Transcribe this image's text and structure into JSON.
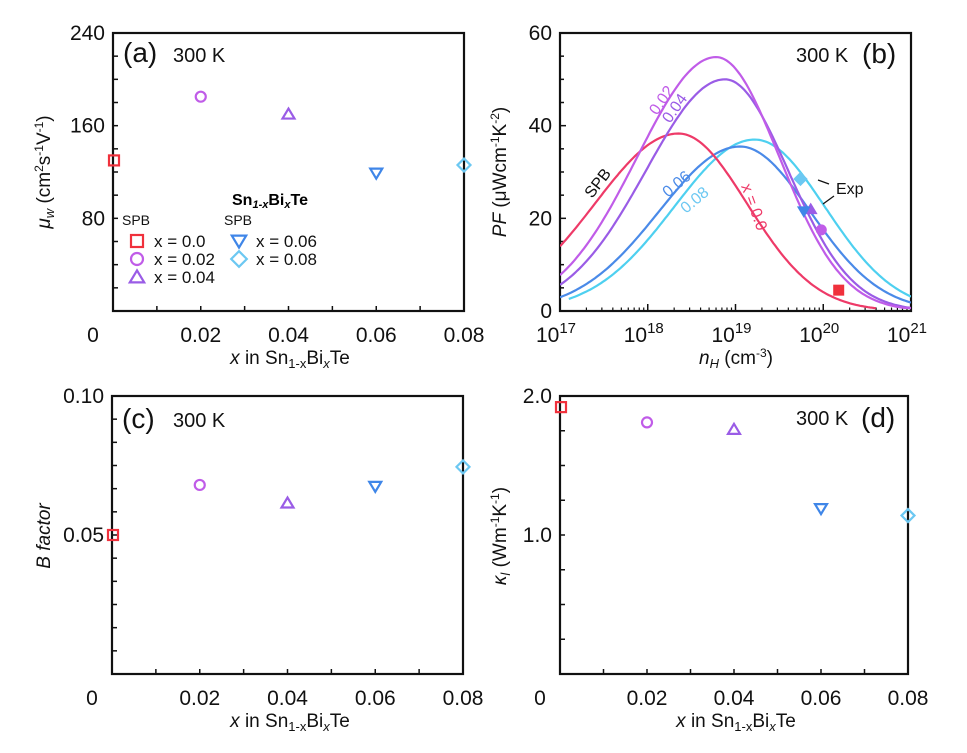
{
  "colors": {
    "x0": "#f0313c",
    "x002": "#c05ce8",
    "x004": "#9a5ce6",
    "x006": "#3f86e8",
    "x008": "#6cc8f2",
    "curve_x0": "#ee3a68",
    "curve_x002": "#c05ce8",
    "curve_x004": "#9a5ce6",
    "curve_x006": "#4a8ae8",
    "curve_x008": "#4ed0f0",
    "axis": "#111111"
  },
  "chart_data": [
    {
      "id": "a",
      "type": "scatter",
      "panel_label": "(a)",
      "annotation": "300 K",
      "xlabel": "x in Sn1-xBixTe",
      "xlabel_parts": {
        "pre": "x",
        "mid": " in Sn",
        "sub1": "1-x",
        "bi": "Bi",
        "sub2": "x",
        "post": "Te"
      },
      "ylabel": "μw (cm2s-1V-1)",
      "ylabel_parts": {
        "sym": "μ",
        "sub": "w",
        "unit_pre": " (cm",
        "sup1": "2",
        "unit_mid": "s",
        "sup2": "-1",
        "unit_mid2": "V",
        "sup3": "-1",
        "unit_post": ")"
      },
      "xlim": [
        0,
        0.08
      ],
      "ylim": [
        0,
        240
      ],
      "xticks": [
        0,
        0.02,
        0.04,
        0.06,
        0.08
      ],
      "xtick_labels": [
        "0",
        "0.02",
        "0.04",
        "0.06",
        "0.08"
      ],
      "yticks": [
        80,
        160,
        240
      ],
      "ytick_labels": [
        "80",
        "160",
        "240"
      ],
      "series": [
        {
          "name": "x = 0.0",
          "marker": "square",
          "x": 0.0,
          "y": 130
        },
        {
          "name": "x = 0.02",
          "marker": "circle",
          "x": 0.02,
          "y": 185
        },
        {
          "name": "x = 0.04",
          "marker": "triangle-up",
          "x": 0.04,
          "y": 170
        },
        {
          "name": "x = 0.06",
          "marker": "triangle-down",
          "x": 0.06,
          "y": 119
        },
        {
          "name": "x = 0.08",
          "marker": "diamond",
          "x": 0.08,
          "y": 126
        }
      ],
      "legend": {
        "title": "Sn1-xBixTe",
        "title_parts": {
          "a": "Sn",
          "sub1": "1-x",
          "b": "Bi",
          "sub2": "x",
          "c": "Te"
        },
        "column_headers": [
          "SPB",
          "SPB"
        ],
        "placement": "lower-left",
        "entries": [
          "x = 0.0",
          "x = 0.02",
          "x = 0.04",
          "x = 0.06",
          "x = 0.08"
        ]
      }
    },
    {
      "id": "b",
      "type": "line",
      "panel_label": "(b)",
      "annotation": "300 K",
      "xlabel": "nH (cm-3)",
      "xlabel_parts": {
        "sym": "n",
        "sub": "H",
        "unit": " (cm",
        "sup": "-3",
        "post": ")"
      },
      "ylabel": "PF (μWcm-1K-2)",
      "ylabel_parts": {
        "sym": "PF",
        "unit": " (μWcm",
        "sup1": "-1",
        "mid": "K",
        "sup2": "-2",
        "post": ")"
      },
      "xscale": "log",
      "xlim": [
        1e+17,
        1e+21
      ],
      "ylim": [
        0,
        60
      ],
      "xticks_exp": [
        17,
        18,
        19,
        20,
        21
      ],
      "xtick_base": "10",
      "yticks": [
        0,
        20,
        40,
        60
      ],
      "ytick_labels": [
        "0",
        "20",
        "40",
        "60"
      ],
      "series": [
        {
          "name": "x = 0.0",
          "label": "x = 0.0",
          "model": "SPB",
          "peak_pf": 38.3,
          "peak_log_n": 18.35,
          "width_left": 0.95,
          "width_right": 0.78,
          "log_n_range": [
            17.0,
            20.6
          ],
          "exp": {
            "marker": "square",
            "n": 1.5e+20,
            "pf": 4.5
          }
        },
        {
          "name": "x = 0.02",
          "label": "0.02",
          "model": "SPB",
          "peak_pf": 54.8,
          "peak_log_n": 18.78,
          "width_left": 0.9,
          "width_right": 0.72,
          "log_n_range": [
            17.0,
            21.0
          ],
          "exp": {
            "marker": "circle",
            "n": 9.5e+19,
            "pf": 17.5
          }
        },
        {
          "name": "x = 0.04",
          "label": "0.04",
          "model": "SPB",
          "peak_pf": 50.0,
          "peak_log_n": 18.88,
          "width_left": 0.9,
          "width_right": 0.72,
          "log_n_range": [
            17.0,
            21.0
          ],
          "exp": {
            "marker": "triangle-up",
            "n": 7.2e+19,
            "pf": 22.0
          }
        },
        {
          "name": "x = 0.06",
          "label": "0.06",
          "model": "SPB",
          "peak_pf": 35.5,
          "peak_log_n": 19.05,
          "width_left": 0.92,
          "width_right": 0.8,
          "log_n_range": [
            17.0,
            21.0
          ],
          "exp": {
            "marker": "triangle-down",
            "n": 6e+19,
            "pf": 21.5
          }
        },
        {
          "name": "x = 0.08",
          "label": "0.08",
          "model": "SPB",
          "peak_pf": 37.0,
          "peak_log_n": 19.22,
          "width_left": 0.92,
          "width_right": 0.8,
          "log_n_range": [
            17.1,
            21.0
          ],
          "exp": {
            "marker": "diamond",
            "n": 5.5e+19,
            "pf": 28.5
          }
        }
      ],
      "annotations": [
        "SPB",
        "Exp"
      ]
    },
    {
      "id": "c",
      "type": "scatter",
      "panel_label": "(c)",
      "annotation": "300 K",
      "xlabel": "x in Sn1-xBixTe",
      "xlabel_parts": {
        "pre": "x",
        "mid": " in Sn",
        "sub1": "1-x",
        "bi": "Bi",
        "sub2": "x",
        "post": "Te"
      },
      "ylabel": "B factor",
      "xlim": [
        0,
        0.08
      ],
      "ylim": [
        0,
        0.1
      ],
      "xticks": [
        0,
        0.02,
        0.04,
        0.06,
        0.08
      ],
      "xtick_labels": [
        "0",
        "0.02",
        "0.04",
        "0.06",
        "0.08"
      ],
      "yticks": [
        0.05,
        0.1
      ],
      "ytick_labels": [
        "0.05",
        "0.10"
      ],
      "series": [
        {
          "name": "x = 0.0",
          "marker": "square",
          "x": 0.0,
          "y": 0.05
        },
        {
          "name": "x = 0.02",
          "marker": "circle",
          "x": 0.02,
          "y": 0.068
        },
        {
          "name": "x = 0.04",
          "marker": "triangle-up",
          "x": 0.04,
          "y": 0.0615
        },
        {
          "name": "x = 0.06",
          "marker": "triangle-down",
          "x": 0.06,
          "y": 0.0675
        },
        {
          "name": "x = 0.08",
          "marker": "diamond",
          "x": 0.08,
          "y": 0.0745
        }
      ]
    },
    {
      "id": "d",
      "type": "scatter",
      "panel_label": "(d)",
      "annotation": "300 K",
      "xlabel": "x in Sn1-xBixTe",
      "xlabel_parts": {
        "pre": "x",
        "mid": " in Sn",
        "sub1": "1-x",
        "bi": "Bi",
        "sub2": "x",
        "post": "Te"
      },
      "ylabel": "κl (Wm-1K-1)",
      "ylabel_parts": {
        "sym": "κ",
        "sub": "l",
        "unit": " (Wm",
        "sup1": "-1",
        "mid": "K",
        "sup2": "-1",
        "post": ")"
      },
      "xlim": [
        0,
        0.08
      ],
      "ylim": [
        0,
        2.0
      ],
      "xticks": [
        0,
        0.02,
        0.04,
        0.06,
        0.08
      ],
      "xtick_labels": [
        "0",
        "0.02",
        "0.04",
        "0.06",
        "0.08"
      ],
      "yticks": [
        1.0,
        2.0
      ],
      "ytick_labels": [
        "1.0",
        "2.0"
      ],
      "series": [
        {
          "name": "x = 0.0",
          "marker": "square",
          "x": 0.0,
          "y": 1.92
        },
        {
          "name": "x = 0.02",
          "marker": "circle",
          "x": 0.02,
          "y": 1.81
        },
        {
          "name": "x = 0.04",
          "marker": "triangle-up",
          "x": 0.04,
          "y": 1.76
        },
        {
          "name": "x = 0.06",
          "marker": "triangle-down",
          "x": 0.06,
          "y": 1.19
        },
        {
          "name": "x = 0.08",
          "marker": "diamond",
          "x": 0.08,
          "y": 1.14
        }
      ]
    }
  ]
}
